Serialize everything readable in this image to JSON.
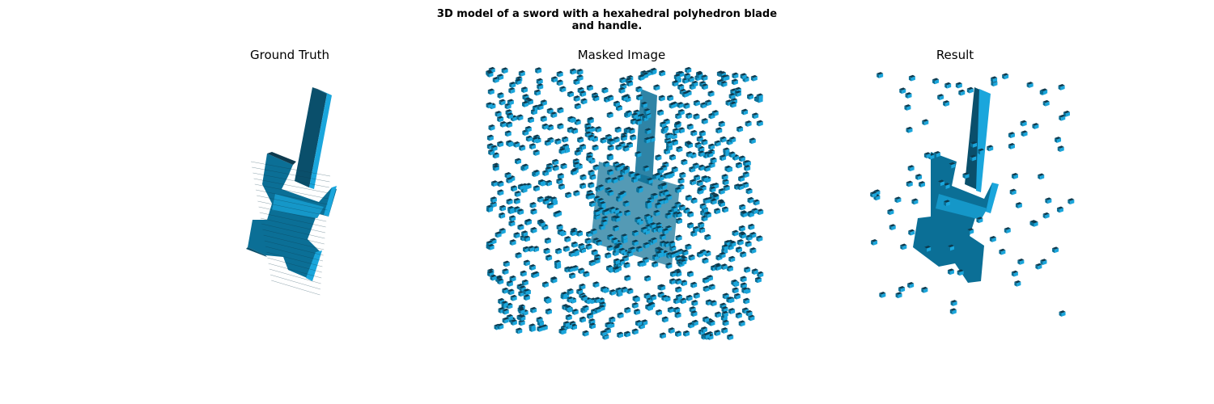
{
  "figure": {
    "title_line1": "3D model of a sword with a hexahedral polyhedron blade",
    "title_line2": "and handle."
  },
  "panels": [
    {
      "id": "ground-truth",
      "title": "Ground Truth"
    },
    {
      "id": "masked-image",
      "title": "Masked Image"
    },
    {
      "id": "result",
      "title": "Result"
    }
  ],
  "colors": {
    "voxel_top": "#1aa6dc",
    "voxel_front": "#0b6f96",
    "voxel_side": "#0a4f6b",
    "voxel_edge": "#0d3a4e"
  }
}
